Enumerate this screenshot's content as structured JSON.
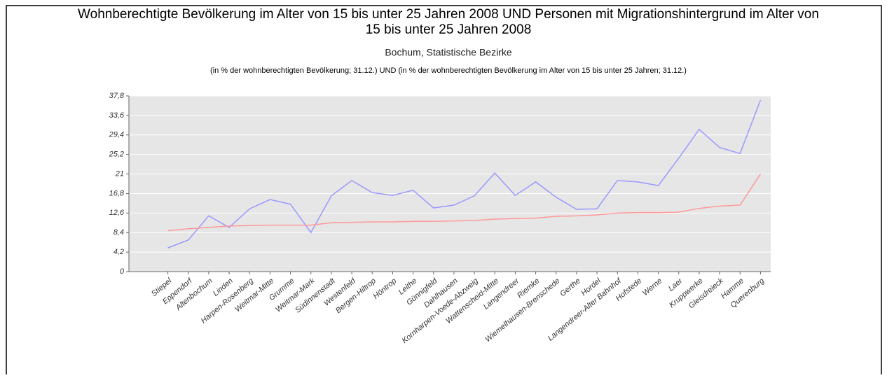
{
  "chart_data": {
    "type": "line",
    "title": [
      "Wohnberechtigte Bevölkerung im Alter von 15 bis unter 25 Jahren 2008 UND Personen mit Migrationshintergrund im Alter von",
      "15 bis unter 25 Jahren 2008"
    ],
    "subtitle": "Bochum, Statistische Bezirke",
    "note": "(in % der wohnberechtigten Bevölkerung; 31.12.) UND (in % der wohnberechtigten Bevölkerung im Alter von 15 bis unter 25 Jahren; 31.12.)",
    "categories": [
      "Stiepel",
      "Eppendorf",
      "Altenbochum",
      "Linden",
      "Harpen-Rosenberg",
      "Weitmar-Mitte",
      "Grumme",
      "Weitmar-Mark",
      "Südinnenstadt",
      "Westenfeld",
      "Bergen-Hiltrop",
      "Höntrop",
      "Leithe",
      "Günnigfeld",
      "Dahlhausen",
      "Kornharpen-Voede-Abzweig",
      "Wattenscheid-Mitte",
      "Langendreer",
      "Riemke",
      "Wiemelhausen-Brenschede",
      "Gerthe",
      "Hordel",
      "Langendreer-Alter Bahnhof",
      "Hofstede",
      "Werne",
      "Laer",
      "Kruppwerke",
      "Gleisdreieck",
      "Hamme",
      "Querenburg"
    ],
    "series": [
      {
        "color": "#9999ff",
        "values": [
          5.1,
          6.8,
          12.0,
          9.5,
          13.5,
          15.5,
          14.5,
          8.4,
          16.3,
          19.6,
          17.0,
          16.4,
          17.5,
          13.7,
          14.3,
          16.3,
          21.2,
          16.4,
          19.3,
          16.0,
          13.4,
          13.5,
          19.6,
          19.3,
          18.5,
          24.4,
          30.6,
          26.7,
          25.4,
          36.9
        ]
      },
      {
        "color": "#ff9999",
        "values": [
          8.8,
          9.2,
          9.5,
          9.8,
          9.9,
          10.0,
          10.0,
          10.0,
          10.5,
          10.6,
          10.7,
          10.7,
          10.8,
          10.8,
          10.9,
          11.0,
          11.3,
          11.4,
          11.5,
          11.9,
          12.0,
          12.2,
          12.6,
          12.7,
          12.7,
          12.8,
          13.6,
          14.1,
          14.3,
          21.0
        ]
      }
    ],
    "ylim": [
      0,
      37.8
    ],
    "yticks": [
      0,
      {
        "value": 4.2,
        "label": "4,2"
      },
      {
        "value": 8.4,
        "label": "8,4"
      },
      {
        "value": 12.6,
        "label": "12,6"
      },
      {
        "value": 16.8,
        "label": "16,8"
      },
      21,
      {
        "value": 25.2,
        "label": "25,2"
      },
      {
        "value": 29.4,
        "label": "29,4"
      },
      {
        "value": 33.6,
        "label": "33,6"
      },
      {
        "value": 37.8,
        "label": "37,8"
      }
    ],
    "grid": true
  }
}
